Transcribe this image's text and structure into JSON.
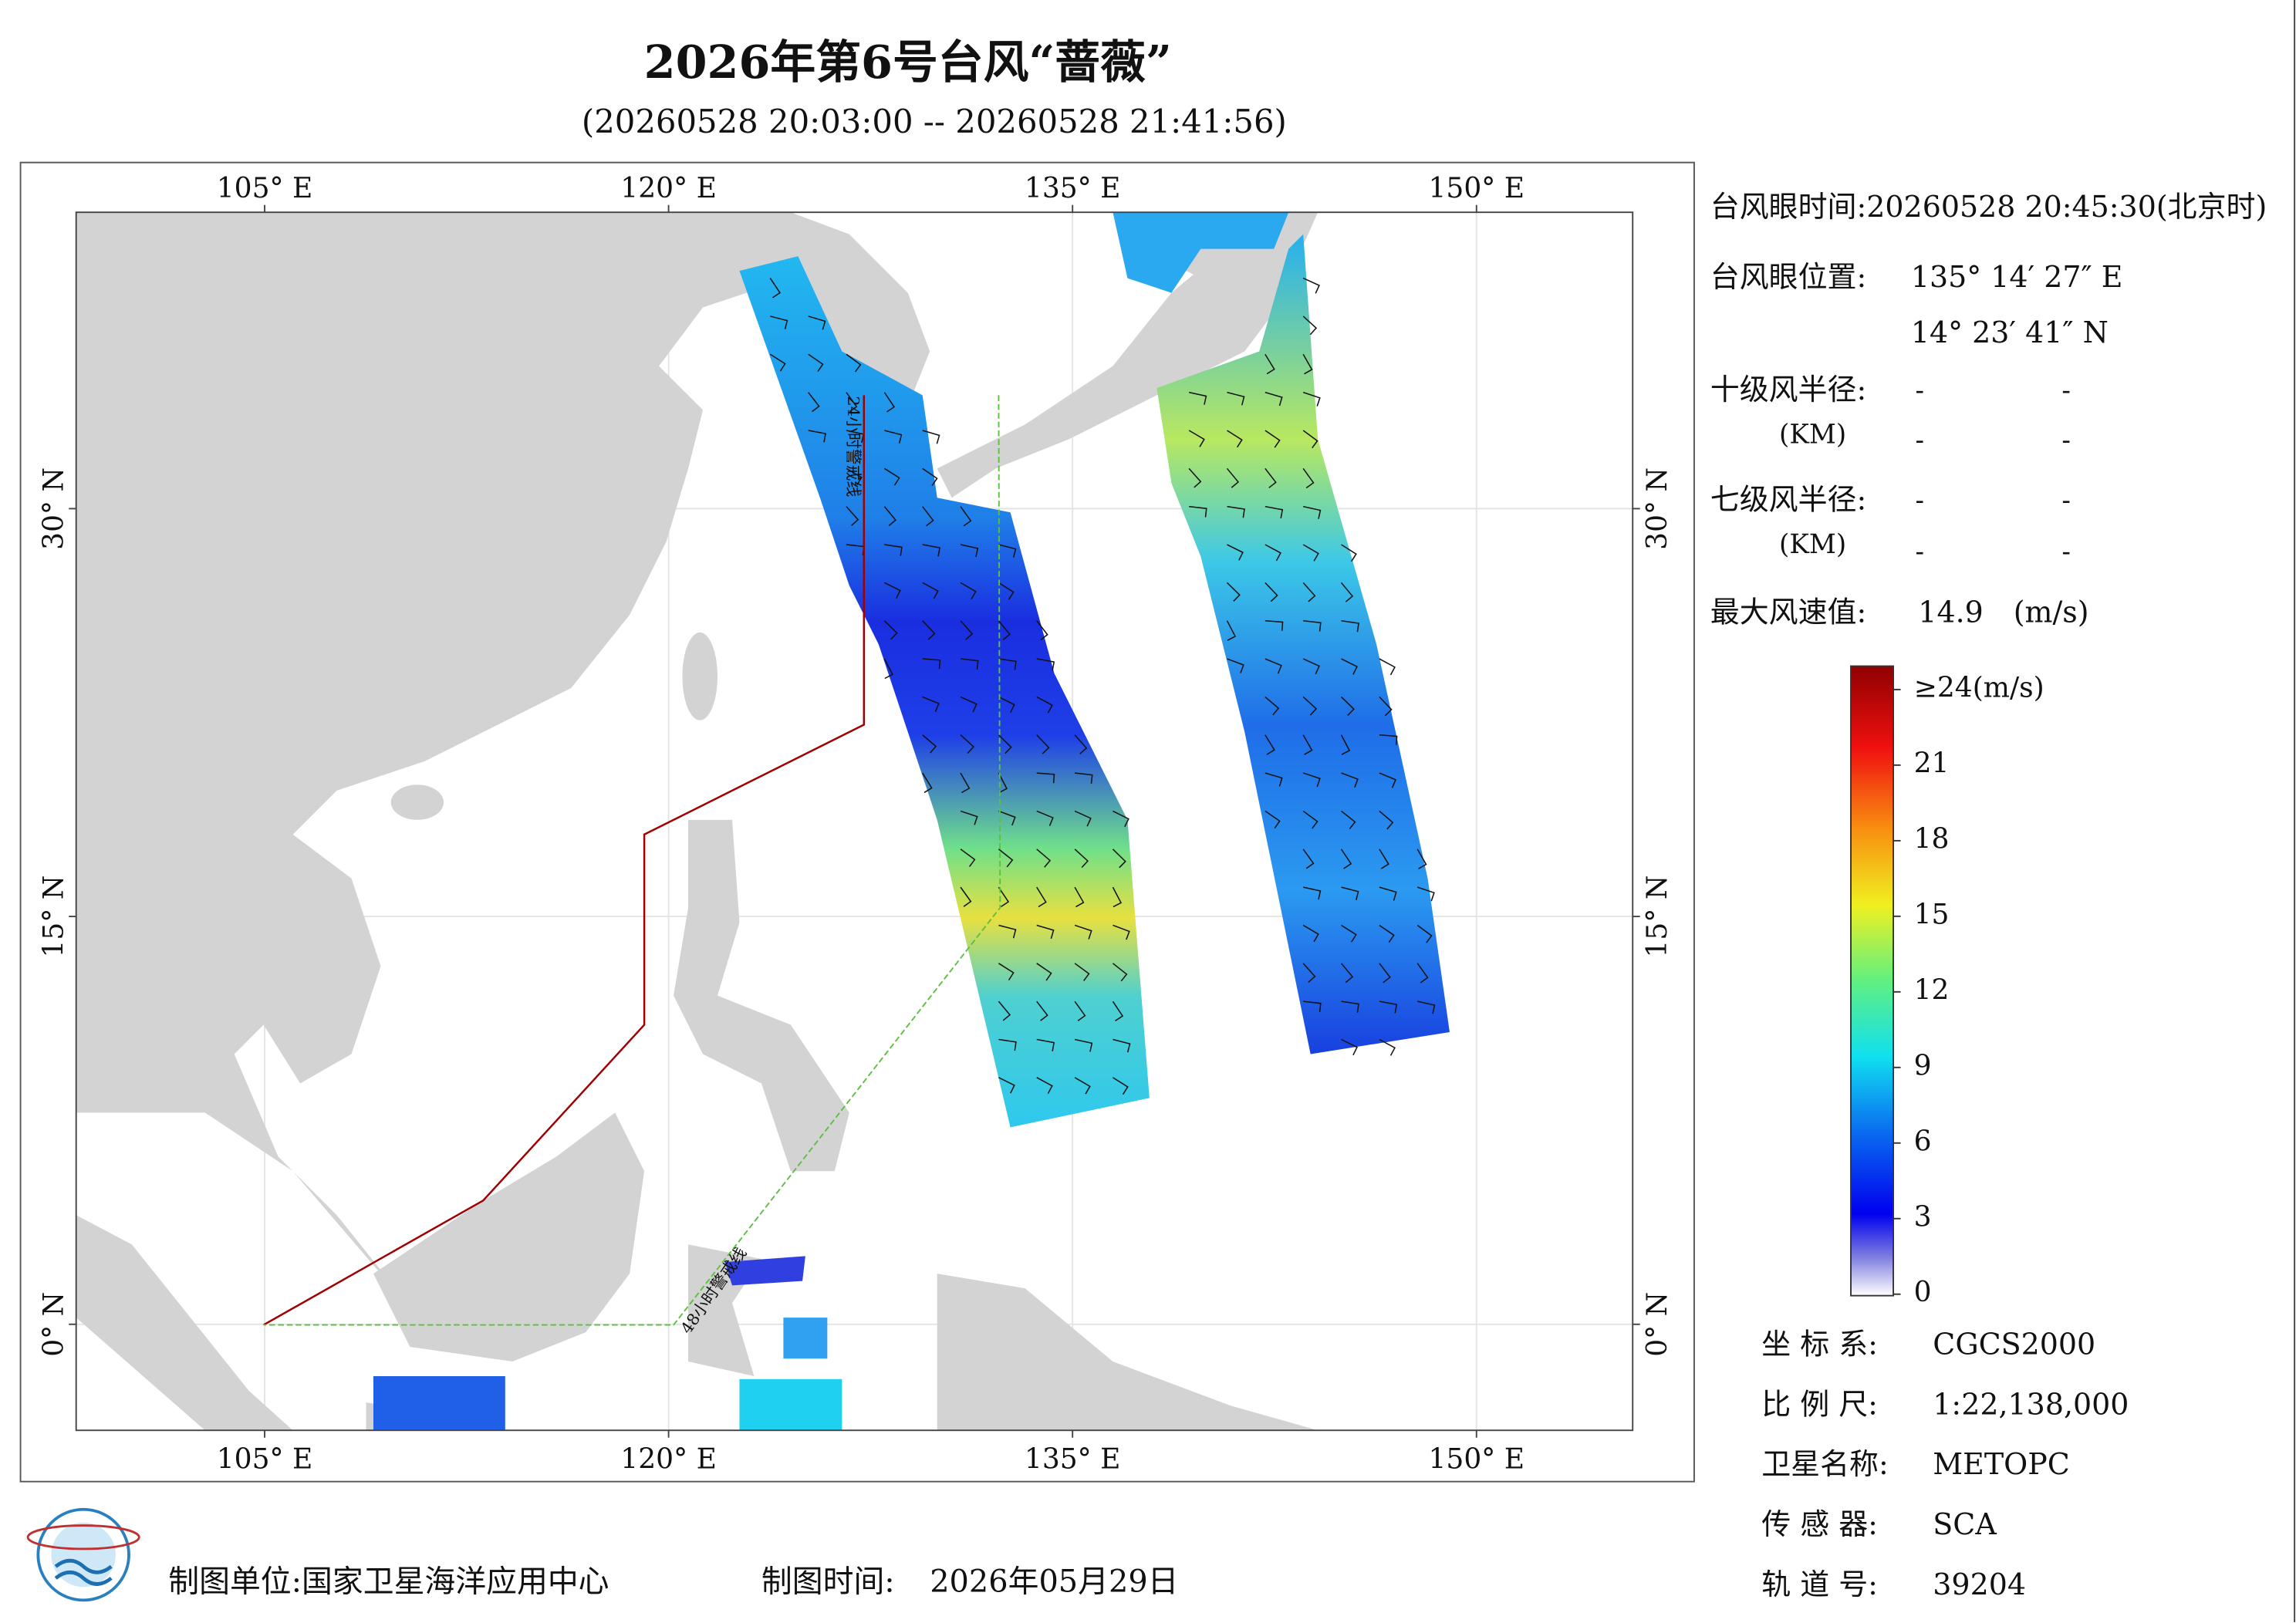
{
  "header": {
    "title": "2026年第6号台风“蔷薇”",
    "subtitle": "(20260528 20:03:00 -- 20260528 21:41:56)"
  },
  "map": {
    "xlim": [
      98,
      155.8
    ],
    "ylim": [
      -3.9,
      40.9
    ],
    "xticks": [
      {
        "value": 105,
        "label": "105° E"
      },
      {
        "value": 120,
        "label": "120° E"
      },
      {
        "value": 135,
        "label": "135° E"
      },
      {
        "value": 150,
        "label": "150° E"
      }
    ],
    "yticks": [
      {
        "value": 0,
        "label": "0° N"
      },
      {
        "value": 15,
        "label": "15° N"
      },
      {
        "value": 30,
        "label": "30° N"
      }
    ],
    "warning_lines": [
      "24小时警戒线",
      "48小时警戒线"
    ]
  },
  "info": {
    "eye_time": "台风眼时间:20260528 20:45:30(北京时)",
    "eye_position_label": "台风眼位置:",
    "eye_lon": "135° 14′ 27″ E",
    "eye_lat": "14° 23′ 41″ N",
    "r10_label": "十级风半径:",
    "r7_label": "七级风半径:",
    "km": "(KM)",
    "r10": [
      "-",
      "-",
      "-",
      "-"
    ],
    "r7": [
      "-",
      "-",
      "-",
      "-"
    ],
    "max_wind_label": "最大风速值:",
    "max_wind": "14.9",
    "max_wind_unit": "(m/s)"
  },
  "colorbar": {
    "lim": [
      0,
      24
    ],
    "ticks": [
      0,
      3,
      6,
      9,
      12,
      15,
      18,
      21,
      {
        "value": 24,
        "label": "≥24(m/s)"
      }
    ]
  },
  "meta": [
    [
      "坐 标 系:",
      "CGCS2000"
    ],
    [
      "比 例 尺:",
      "1:22,138,000"
    ],
    [
      "卫星名称:",
      "METOPC"
    ],
    [
      "传 感 器:",
      "SCA"
    ],
    [
      "轨 道 号:",
      "39204"
    ]
  ],
  "footer": {
    "unit": "制图单位:国家卫星海洋应用中心",
    "time_label": "制图时间:",
    "time": "2026年05月29日"
  }
}
